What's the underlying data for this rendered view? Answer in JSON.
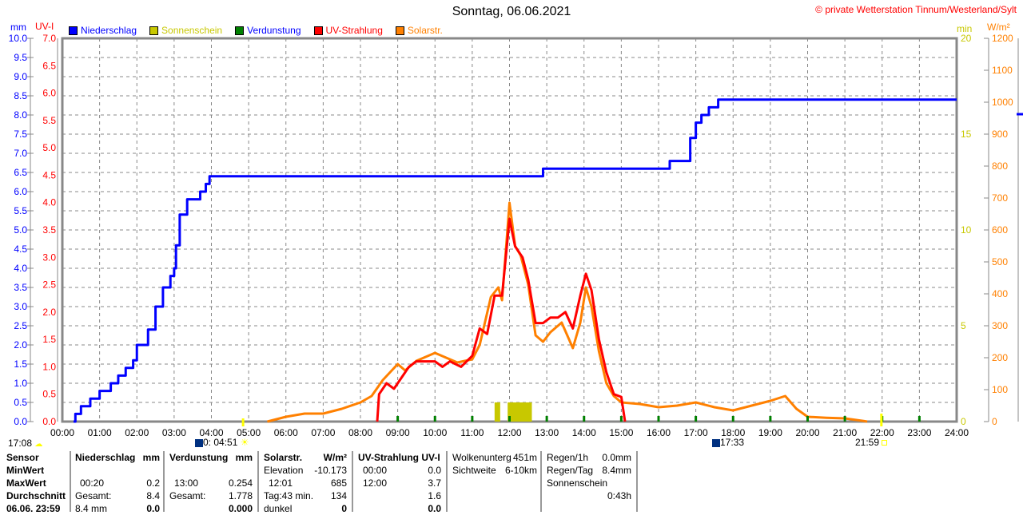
{
  "header": {
    "title": "Sonntag, 06.06.2021",
    "copyright": "© private Wetterstation Tinnum/Westerland/Sylt"
  },
  "axes": {
    "mm_unit": "mm",
    "uv_unit": "UV-I",
    "min_unit": "min",
    "wm2_unit": "W/m²"
  },
  "colors": {
    "niederschlag": "#0000ff",
    "sonnenschein": "#c8c800",
    "verdunstung": "#008000",
    "uv": "#ff0000",
    "solar": "#ff8000"
  },
  "legend": [
    {
      "label": "Niederschlag",
      "color": "#0000ff",
      "text_color": "#0000ff"
    },
    {
      "label": "Sonnenschein",
      "color": "#c8c800",
      "text_color": "#c8c800"
    },
    {
      "label": "Verdunstung",
      "color": "#008000",
      "text_color": "#0000ff"
    },
    {
      "label": "UV-Strahlung",
      "color": "#ff0000",
      "text_color": "#ff0000"
    },
    {
      "label": "Solarstr.",
      "color": "#ff8000",
      "text_color": "#ff8000"
    }
  ],
  "chart_data": {
    "type": "line",
    "title": "Sonntag, 06.06.2021",
    "x_ticks": [
      "00:00",
      "01:00",
      "02:00",
      "03:00",
      "04:00",
      "05:00",
      "06:00",
      "07:00",
      "08:00",
      "09:00",
      "10:00",
      "11:00",
      "12:00",
      "13:00",
      "14:00",
      "15:00",
      "16:00",
      "17:00",
      "18:00",
      "19:00",
      "20:00",
      "21:00",
      "22:00",
      "23:00",
      "24:00"
    ],
    "xlim_hours": [
      0,
      24
    ],
    "grid": true,
    "axes": {
      "mm": {
        "range": [
          0,
          10
        ],
        "ticks": [
          "0.0",
          "0.5",
          "1.0",
          "1.5",
          "2.0",
          "2.5",
          "3.0",
          "3.5",
          "4.0",
          "4.5",
          "5.0",
          "5.5",
          "6.0",
          "6.5",
          "7.0",
          "7.5",
          "8.0",
          "8.5",
          "9.0",
          "9.5",
          "10.0"
        ]
      },
      "uv": {
        "range": [
          0,
          7
        ],
        "ticks": [
          "0.0",
          "0.5",
          "1.0",
          "1.5",
          "2.0",
          "2.5",
          "3.0",
          "3.5",
          "4.0",
          "4.5",
          "5.0",
          "5.5",
          "6.0",
          "6.5",
          "7.0"
        ]
      },
      "min": {
        "range": [
          0,
          20
        ],
        "ticks": [
          "0",
          "5",
          "10",
          "15",
          "20"
        ]
      },
      "wm2": {
        "range": [
          0,
          1200
        ],
        "ticks": [
          "0",
          "100",
          "200",
          "300",
          "400",
          "500",
          "600",
          "700",
          "800",
          "900",
          "1000",
          "1100",
          "1200"
        ]
      }
    },
    "series": [
      {
        "name": "Niederschlag",
        "axis": "mm",
        "color": "#0000ff",
        "step": true,
        "points": [
          [
            0.3,
            0
          ],
          [
            0.35,
            0.2
          ],
          [
            0.5,
            0.4
          ],
          [
            0.75,
            0.6
          ],
          [
            1.0,
            0.8
          ],
          [
            1.3,
            1.0
          ],
          [
            1.5,
            1.2
          ],
          [
            1.7,
            1.4
          ],
          [
            1.9,
            1.6
          ],
          [
            2.0,
            2.0
          ],
          [
            2.3,
            2.4
          ],
          [
            2.5,
            3.0
          ],
          [
            2.7,
            3.5
          ],
          [
            2.9,
            3.8
          ],
          [
            3.0,
            4.0
          ],
          [
            3.05,
            4.6
          ],
          [
            3.15,
            5.4
          ],
          [
            3.35,
            5.8
          ],
          [
            3.7,
            6.0
          ],
          [
            3.85,
            6.2
          ],
          [
            3.95,
            6.4
          ],
          [
            12.85,
            6.4
          ],
          [
            12.9,
            6.6
          ],
          [
            16.25,
            6.6
          ],
          [
            16.3,
            6.8
          ],
          [
            16.7,
            6.8
          ],
          [
            16.85,
            7.4
          ],
          [
            17.0,
            7.8
          ],
          [
            17.15,
            8.0
          ],
          [
            17.35,
            8.2
          ],
          [
            17.6,
            8.4
          ],
          [
            24,
            8.4
          ]
        ]
      },
      {
        "name": "Solarstr.",
        "axis": "wm2",
        "color": "#ff8000",
        "points": [
          [
            5.5,
            0
          ],
          [
            6.0,
            15
          ],
          [
            6.5,
            25
          ],
          [
            7.0,
            25
          ],
          [
            7.5,
            40
          ],
          [
            8.0,
            60
          ],
          [
            8.3,
            80
          ],
          [
            8.6,
            130
          ],
          [
            9.0,
            180
          ],
          [
            9.2,
            160
          ],
          [
            9.5,
            190
          ],
          [
            10.0,
            215
          ],
          [
            10.3,
            200
          ],
          [
            10.6,
            185
          ],
          [
            11.0,
            195
          ],
          [
            11.2,
            240
          ],
          [
            11.5,
            390
          ],
          [
            11.7,
            420
          ],
          [
            11.8,
            380
          ],
          [
            12.0,
            685
          ],
          [
            12.15,
            550
          ],
          [
            12.3,
            520
          ],
          [
            12.5,
            430
          ],
          [
            12.7,
            270
          ],
          [
            12.9,
            250
          ],
          [
            13.1,
            280
          ],
          [
            13.4,
            310
          ],
          [
            13.7,
            230
          ],
          [
            13.9,
            310
          ],
          [
            14.05,
            420
          ],
          [
            14.2,
            360
          ],
          [
            14.4,
            220
          ],
          [
            14.6,
            120
          ],
          [
            14.8,
            80
          ],
          [
            15.0,
            60
          ],
          [
            15.5,
            55
          ],
          [
            16.0,
            45
          ],
          [
            16.5,
            50
          ],
          [
            17.0,
            60
          ],
          [
            17.5,
            45
          ],
          [
            18.0,
            35
          ],
          [
            18.5,
            50
          ],
          [
            19.0,
            65
          ],
          [
            19.4,
            80
          ],
          [
            19.7,
            40
          ],
          [
            20.0,
            15
          ],
          [
            20.5,
            12
          ],
          [
            21.0,
            10
          ],
          [
            21.5,
            2
          ],
          [
            21.6,
            0
          ]
        ]
      },
      {
        "name": "UV-Strahlung",
        "axis": "uv",
        "color": "#ff0000",
        "points": [
          [
            8.45,
            0
          ],
          [
            8.5,
            0.5
          ],
          [
            8.7,
            0.7
          ],
          [
            8.9,
            0.6
          ],
          [
            9.1,
            0.8
          ],
          [
            9.3,
            1.0
          ],
          [
            9.5,
            1.1
          ],
          [
            10.0,
            1.1
          ],
          [
            10.2,
            1.0
          ],
          [
            10.4,
            1.1
          ],
          [
            10.7,
            1.0
          ],
          [
            11.0,
            1.2
          ],
          [
            11.2,
            1.7
          ],
          [
            11.4,
            1.6
          ],
          [
            11.6,
            2.3
          ],
          [
            11.8,
            2.3
          ],
          [
            12.0,
            3.7
          ],
          [
            12.15,
            3.2
          ],
          [
            12.35,
            3.0
          ],
          [
            12.5,
            2.6
          ],
          [
            12.7,
            1.8
          ],
          [
            12.9,
            1.8
          ],
          [
            13.1,
            1.9
          ],
          [
            13.3,
            1.9
          ],
          [
            13.5,
            2.0
          ],
          [
            13.7,
            1.7
          ],
          [
            13.9,
            2.3
          ],
          [
            14.05,
            2.7
          ],
          [
            14.2,
            2.4
          ],
          [
            14.4,
            1.5
          ],
          [
            14.6,
            0.9
          ],
          [
            14.8,
            0.5
          ],
          [
            15.0,
            0.45
          ],
          [
            15.1,
            0
          ]
        ]
      },
      {
        "name": "Sonnenschein",
        "axis": "min",
        "color": "#c8c800",
        "type": "bar",
        "bars": [
          [
            11.6,
            11.75,
            1
          ],
          [
            11.95,
            12.6,
            1
          ]
        ]
      },
      {
        "name": "Verdunstung",
        "axis": "mm",
        "color": "#008000",
        "type": "ticks",
        "hours": [
          9,
          10,
          11,
          12,
          13,
          14,
          15,
          16,
          17,
          18,
          19,
          20,
          21,
          22,
          23
        ]
      }
    ]
  },
  "astro": {
    "left_time": "17:08",
    "moonrise": "0: 04:51",
    "moonset": "17:33",
    "sunset": "21:59"
  },
  "table": {
    "sensor": {
      "header": "Sensor",
      "rows": [
        "MinWert",
        "MaxWert",
        "Durchschnitt",
        "06.06. 23:59"
      ]
    },
    "niederschlag": {
      "header": "Niederschlag",
      "unit": "mm",
      "max_time": "00:20",
      "max": "0.2",
      "avg_label": "Gesamt:",
      "avg": "8.4",
      "cur_label": "8.4 mm",
      "cur": "0.0"
    },
    "verdunstung": {
      "header": "Verdunstung",
      "unit": "mm",
      "max_time": "13:00",
      "max": "0.254",
      "avg_label": "Gesamt:",
      "avg": "1.778",
      "cur": "0.000"
    },
    "solar": {
      "header": "Solarstr.",
      "unit": "W/m²",
      "min_label": "Elevation",
      "min": "-10.173",
      "max_time": "12:01",
      "max": "685",
      "avg_label": "Tag:43 min.",
      "avg": "134",
      "cur_label": "dunkel",
      "cur": "0"
    },
    "uv": {
      "header": "UV-Strahlung UV-I",
      "min_time": "00:00",
      "min": "0.0",
      "max_time": "12:00",
      "max": "3.7",
      "avg": "1.6",
      "cur": "0.0"
    },
    "misc": {
      "wolken_label": "Wolkenunterg",
      "wolken": "451m",
      "sicht_label": "Sichtweite",
      "sicht": "6-10km"
    },
    "regen": {
      "r1h_label": "Regen/1h",
      "r1h": "0.0mm",
      "rtag_label": "Regen/Tag",
      "rtag": "8.4mm",
      "sonne_label": "Sonnenschein",
      "sonne": "0:43h"
    }
  }
}
